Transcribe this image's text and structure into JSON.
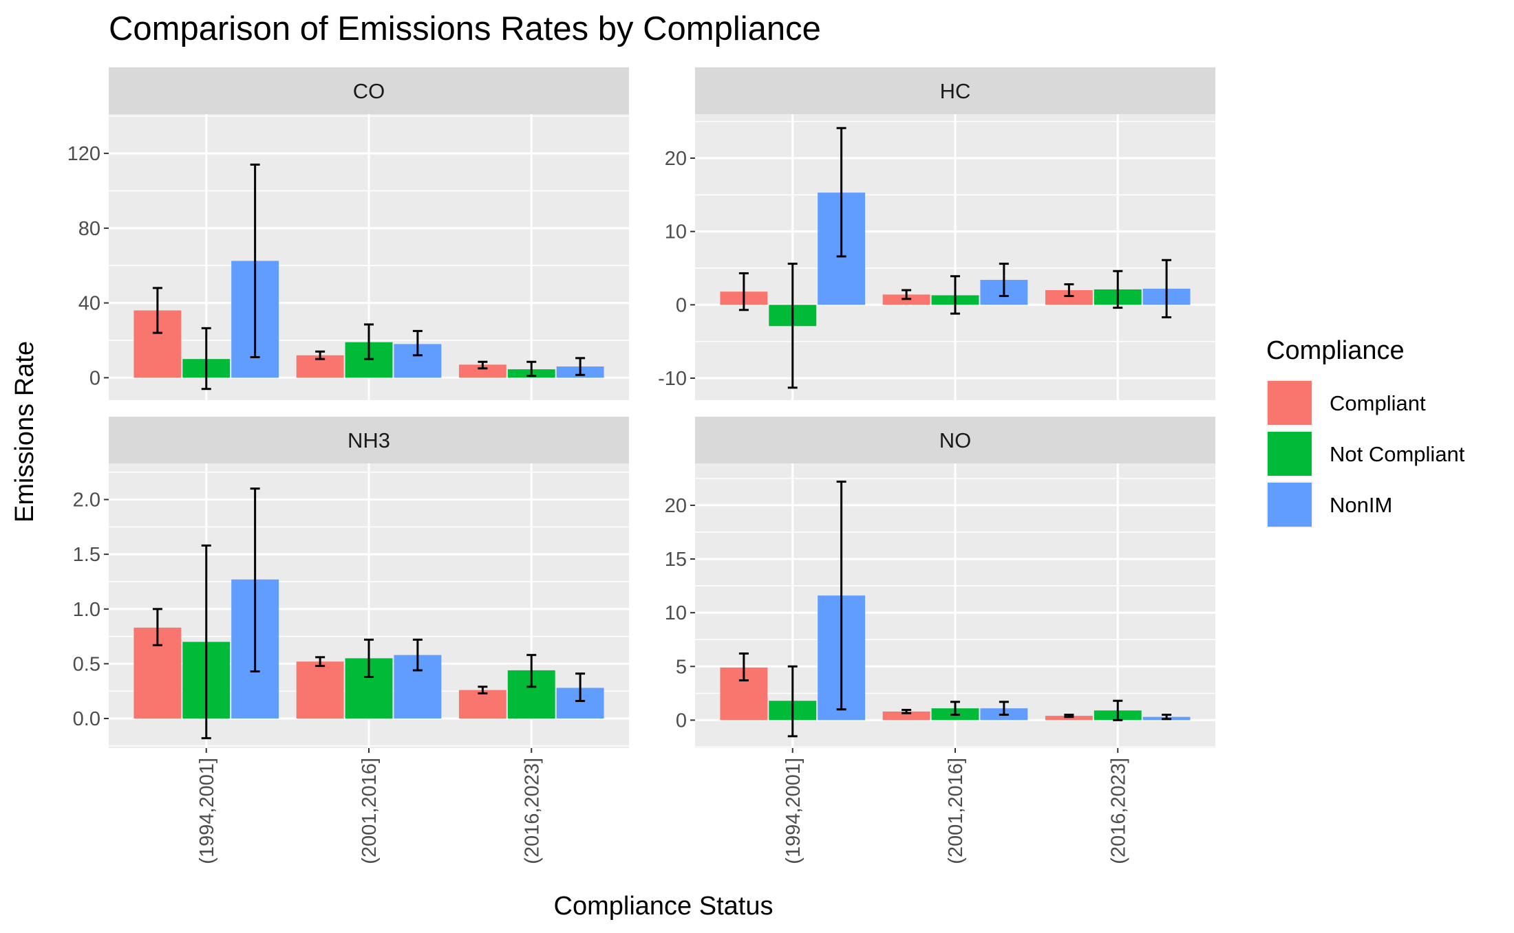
{
  "colors": {
    "panel_bg": "#EBEBEB",
    "strip_bg": "#D9D9D9",
    "grid": "#FFFFFF",
    "series": [
      "#F8766D",
      "#00BA38",
      "#619CFF"
    ],
    "errorbar": "#000000"
  },
  "chart_data": {
    "type": "bar",
    "title": "Comparison of Emissions Rates by Compliance",
    "xlabel": "Compliance Status",
    "ylabel": "Emissions Rate",
    "categories": [
      "(1994,2001]",
      "(2001,2016]",
      "(2016,2023]"
    ],
    "legend": {
      "title": "Compliance",
      "position": "right",
      "entries": [
        "Compliant",
        "Not Compliant",
        "NonIM"
      ]
    },
    "grid": true,
    "panels": [
      {
        "label": "CO",
        "ylim": [
          -12,
          141
        ],
        "yticks": [
          0,
          40,
          80,
          120
        ],
        "ytick_labels": [
          "0",
          "40",
          "80",
          "120"
        ],
        "series": [
          {
            "name": "Compliant",
            "values": [
              36,
              12,
              7
            ],
            "err_low": [
              24,
              10,
              5
            ],
            "err_high": [
              48,
              14,
              8.5
            ]
          },
          {
            "name": "Not Compliant",
            "values": [
              10,
              19,
              4.5
            ],
            "err_low": [
              -6,
              10,
              1
            ],
            "err_high": [
              26.5,
              28.5,
              8.5
            ]
          },
          {
            "name": "NonIM",
            "values": [
              62.5,
              18,
              6
            ],
            "err_low": [
              11,
              12,
              1.5
            ],
            "err_high": [
              114,
              25,
              10.5
            ]
          }
        ]
      },
      {
        "label": "HC",
        "ylim": [
          -13,
          26
        ],
        "yticks": [
          -10,
          0,
          10,
          20
        ],
        "ytick_labels": [
          "-10",
          "0",
          "10",
          "20"
        ],
        "series": [
          {
            "name": "Compliant",
            "values": [
              1.8,
              1.4,
              2.0
            ],
            "err_low": [
              -0.7,
              0.8,
              1.2
            ],
            "err_high": [
              4.3,
              2.0,
              2.8
            ]
          },
          {
            "name": "Not Compliant",
            "values": [
              -2.9,
              1.3,
              2.1
            ],
            "err_low": [
              -11.3,
              -1.2,
              -0.4
            ],
            "err_high": [
              5.6,
              3.9,
              4.6
            ]
          },
          {
            "name": "NonIM",
            "values": [
              15.3,
              3.4,
              2.2
            ],
            "err_low": [
              6.6,
              1.2,
              -1.7
            ],
            "err_high": [
              24.1,
              5.6,
              6.1
            ]
          }
        ]
      },
      {
        "label": "NH3",
        "ylim": [
          -0.27,
          2.33
        ],
        "yticks": [
          0.0,
          0.5,
          1.0,
          1.5,
          2.0
        ],
        "ytick_labels": [
          "0.0",
          "0.5",
          "1.0",
          "1.5",
          "2.0"
        ],
        "series": [
          {
            "name": "Compliant",
            "values": [
              0.83,
              0.52,
              0.26
            ],
            "err_low": [
              0.67,
              0.48,
              0.23
            ],
            "err_high": [
              1.0,
              0.56,
              0.29
            ]
          },
          {
            "name": "Not Compliant",
            "values": [
              0.7,
              0.55,
              0.44
            ],
            "err_low": [
              -0.18,
              0.38,
              0.29
            ],
            "err_high": [
              1.58,
              0.72,
              0.58
            ]
          },
          {
            "name": "NonIM",
            "values": [
              1.27,
              0.58,
              0.28
            ],
            "err_low": [
              0.43,
              0.44,
              0.16
            ],
            "err_high": [
              2.1,
              0.72,
              0.41
            ]
          }
        ]
      },
      {
        "label": "NO",
        "ylim": [
          -2.6,
          23.9
        ],
        "yticks": [
          0,
          5,
          10,
          15,
          20
        ],
        "ytick_labels": [
          "0",
          "5",
          "10",
          "15",
          "20"
        ],
        "series": [
          {
            "name": "Compliant",
            "values": [
              4.9,
              0.8,
              0.4
            ],
            "err_low": [
              3.7,
              0.65,
              0.3
            ],
            "err_high": [
              6.2,
              0.95,
              0.5
            ]
          },
          {
            "name": "Not Compliant",
            "values": [
              1.8,
              1.1,
              0.9
            ],
            "err_low": [
              -1.5,
              0.5,
              0.0
            ],
            "err_high": [
              5.0,
              1.7,
              1.8
            ]
          },
          {
            "name": "NonIM",
            "values": [
              11.6,
              1.1,
              0.3
            ],
            "err_low": [
              1.0,
              0.5,
              0.1
            ],
            "err_high": [
              22.2,
              1.7,
              0.5
            ]
          }
        ]
      }
    ]
  }
}
